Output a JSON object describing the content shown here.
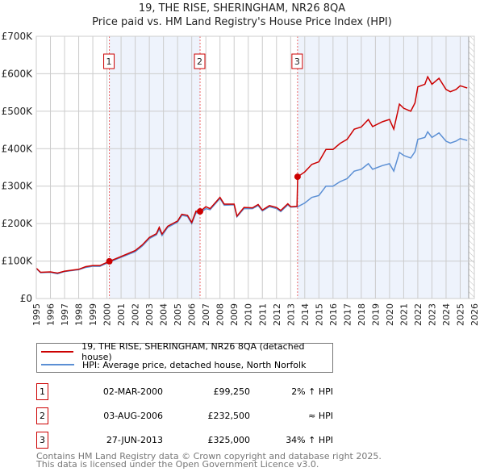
{
  "chart_data": {
    "type": "line",
    "title": "19, THE RISE, SHERINGHAM, NR26 8QA",
    "subtitle": "Price paid vs. HM Land Registry's House Price Index (HPI)",
    "xlim": [
      1995,
      2026
    ],
    "ylim": [
      0,
      700000
    ],
    "yticks": [
      {
        "v": 0,
        "label": "£0"
      },
      {
        "v": 100000,
        "label": "£100K"
      },
      {
        "v": 200000,
        "label": "£200K"
      },
      {
        "v": 300000,
        "label": "£300K"
      },
      {
        "v": 400000,
        "label": "£400K"
      },
      {
        "v": 500000,
        "label": "£500K"
      },
      {
        "v": 600000,
        "label": "£600K"
      },
      {
        "v": 700000,
        "label": "£700K"
      }
    ],
    "xticks": [
      "1995",
      "1996",
      "1997",
      "1998",
      "1999",
      "2000",
      "2001",
      "2002",
      "2003",
      "2004",
      "2005",
      "2006",
      "2007",
      "2008",
      "2009",
      "2010",
      "2011",
      "2012",
      "2013",
      "2014",
      "2015",
      "2016",
      "2017",
      "2018",
      "2019",
      "2020",
      "2021",
      "2022",
      "2023",
      "2024",
      "2025",
      "2026"
    ],
    "grid": true,
    "series": [
      {
        "name": "19, THE RISE, SHERINGHAM, NR26 8QA (detached house)",
        "color": "#cc0000",
        "x": [
          1995,
          1995.3,
          1996,
          1996.5,
          1997,
          1998,
          1998.5,
          1999,
          1999.5,
          2000.17,
          2001,
          2002,
          2002.5,
          2003,
          2003.5,
          2003.7,
          2003.9,
          2004.3,
          2005,
          2005.3,
          2005.7,
          2006,
          2006.3,
          2006.6,
          2007,
          2007.3,
          2008,
          2008.3,
          2009,
          2009.2,
          2009.7,
          2010.3,
          2010.7,
          2011,
          2011.5,
          2012,
          2012.3,
          2012.8,
          2013,
          2013.45,
          2013.5,
          2014,
          2014.5,
          2015,
          2015.5,
          2016,
          2016.5,
          2017,
          2017.5,
          2018,
          2018.5,
          2018.8,
          2019.5,
          2020,
          2020.3,
          2020.7,
          2021,
          2021.5,
          2021.8,
          2022,
          2022.5,
          2022.7,
          2023,
          2023.5,
          2024,
          2024.3,
          2024.7,
          2025,
          2025.5
        ],
        "y": [
          81000,
          70000,
          71000,
          68000,
          73000,
          78000,
          85000,
          88000,
          88000,
          99250,
          112000,
          128000,
          143000,
          163000,
          173000,
          190000,
          172000,
          193000,
          207000,
          225000,
          222000,
          203000,
          233000,
          232500,
          245000,
          240000,
          270000,
          252000,
          252000,
          220000,
          243000,
          242000,
          251000,
          236000,
          248000,
          243000,
          235000,
          253000,
          245000,
          246000,
          325000,
          338000,
          358000,
          365000,
          398000,
          398000,
          414000,
          425000,
          452000,
          458000,
          478000,
          459000,
          472000,
          478000,
          452000,
          519000,
          508000,
          500000,
          522000,
          565000,
          572000,
          592000,
          572000,
          588000,
          558000,
          552000,
          558000,
          568000,
          562000
        ]
      },
      {
        "name": "HPI: Average price, detached house, North Norfolk",
        "color": "#5b8fd4",
        "x": [
          1995,
          1995.3,
          1996,
          1996.5,
          1997,
          1998,
          1998.5,
          1999,
          1999.5,
          2000.17,
          2001,
          2002,
          2002.5,
          2003,
          2003.5,
          2003.7,
          2003.9,
          2004.3,
          2005,
          2005.3,
          2005.7,
          2006,
          2006.3,
          2006.6,
          2007,
          2007.3,
          2008,
          2008.3,
          2009,
          2009.2,
          2009.7,
          2010.3,
          2010.7,
          2011,
          2011.5,
          2012,
          2012.3,
          2012.8,
          2013,
          2013.5,
          2014,
          2014.5,
          2015,
          2015.5,
          2016,
          2016.5,
          2017,
          2017.5,
          2018,
          2018.5,
          2018.8,
          2019.5,
          2020,
          2020.3,
          2020.7,
          2021,
          2021.5,
          2021.8,
          2022,
          2022.5,
          2022.7,
          2023,
          2023.5,
          2024,
          2024.3,
          2024.7,
          2025,
          2025.5
        ],
        "y": [
          80000,
          69000,
          70000,
          66000,
          72000,
          77000,
          83000,
          86000,
          86000,
          97000,
          110000,
          125000,
          140000,
          160000,
          170000,
          185000,
          168000,
          190000,
          204000,
          222000,
          219000,
          200000,
          229000,
          228000,
          240000,
          237000,
          267000,
          249000,
          250000,
          218000,
          240000,
          240000,
          248000,
          234000,
          245000,
          240000,
          232000,
          250000,
          244000,
          245000,
          255000,
          270000,
          275000,
          300000,
          300000,
          312000,
          320000,
          340000,
          345000,
          360000,
          345000,
          355000,
          360000,
          340000,
          390000,
          382000,
          375000,
          392000,
          425000,
          430000,
          445000,
          430000,
          442000,
          420000,
          415000,
          420000,
          427000,
          422000
        ]
      }
    ],
    "sales": [
      {
        "n": "1",
        "x": 2000.17,
        "y": 99250,
        "date": "02-MAR-2000",
        "price": "£99,250",
        "hpi": "2% ↑ HPI"
      },
      {
        "n": "2",
        "x": 2006.59,
        "y": 232500,
        "date": "03-AUG-2006",
        "price": "£232,500",
        "hpi": "≈ HPI"
      },
      {
        "n": "3",
        "x": 2013.49,
        "y": 325000,
        "date": "27-JUN-2013",
        "price": "£325,000",
        "hpi": "34% ↑ HPI"
      }
    ],
    "forecast_from": 2025.6
  },
  "legend": {
    "item0": "19, THE RISE, SHERINGHAM, NR26 8QA (detached house)",
    "item1": "HPI: Average price, detached house, North Norfolk"
  },
  "footer": {
    "line1": "Contains HM Land Registry data © Crown copyright and database right 2025.",
    "line2": "This data is licensed under the Open Government Licence v3.0."
  }
}
